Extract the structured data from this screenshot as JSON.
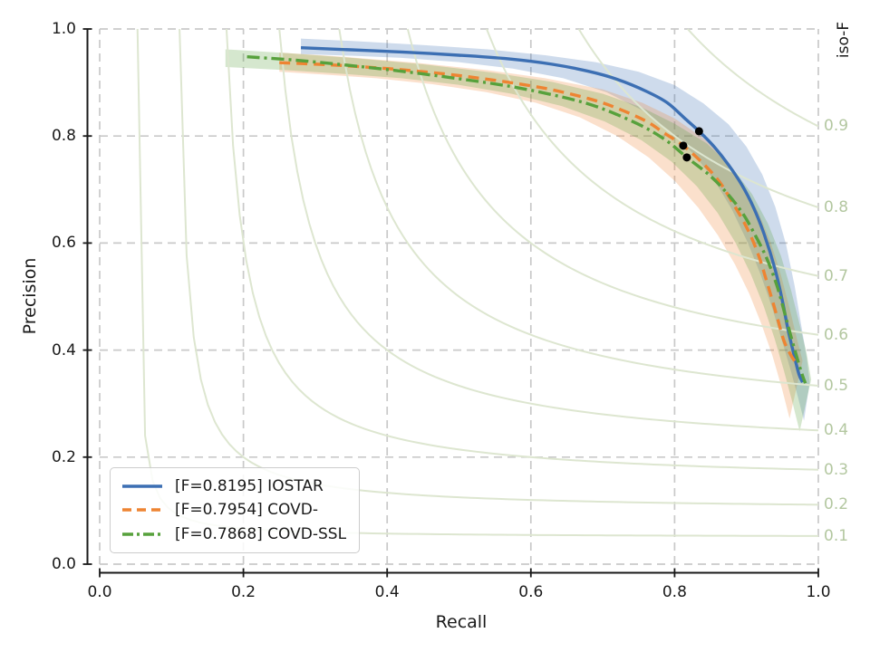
{
  "chart_data": {
    "type": "line",
    "title": "",
    "xlabel": "Recall",
    "ylabel": "Precision",
    "xlim": [
      0.0,
      1.0
    ],
    "ylim": [
      0.0,
      1.0
    ],
    "x_tick_values": [
      0.0,
      0.2,
      0.4,
      0.6,
      0.8,
      1.0
    ],
    "x_tick_labels": [
      "0.0",
      "0.2",
      "0.4",
      "0.6",
      "0.8",
      "1.0"
    ],
    "y_tick_values": [
      0.0,
      0.2,
      0.4,
      0.6,
      0.8,
      1.0
    ],
    "y_tick_labels": [
      "0.0",
      "0.2",
      "0.4",
      "0.6",
      "0.8",
      "1.0"
    ],
    "grid": "dashed",
    "legend_position": "lower-left",
    "iso_f": {
      "title": "iso-F",
      "values": [
        0.1,
        0.2,
        0.3,
        0.4,
        0.5,
        0.6,
        0.7,
        0.8,
        0.9
      ],
      "labels": [
        "0.1",
        "0.2",
        "0.3",
        "0.4",
        "0.5",
        "0.6",
        "0.7",
        "0.8",
        "0.9"
      ],
      "text_color": "#b3c7a0",
      "line_color": "#dde6d0"
    },
    "series": [
      {
        "name": "IOSTAR",
        "legend_label": "[F=0.8195] IOSTAR",
        "f_score": 0.8195,
        "color": "#3c6fb3",
        "line_style": "solid",
        "operating_point": {
          "recall": 0.834,
          "precision": 0.809
        },
        "points": [
          [
            0.28,
            0.965
          ],
          [
            0.35,
            0.961
          ],
          [
            0.42,
            0.957
          ],
          [
            0.5,
            0.951
          ],
          [
            0.57,
            0.944
          ],
          [
            0.63,
            0.934
          ],
          [
            0.68,
            0.921
          ],
          [
            0.72,
            0.906
          ],
          [
            0.76,
            0.884
          ],
          [
            0.79,
            0.862
          ],
          [
            0.815,
            0.832
          ],
          [
            0.834,
            0.809
          ],
          [
            0.855,
            0.78
          ],
          [
            0.875,
            0.746
          ],
          [
            0.893,
            0.71
          ],
          [
            0.91,
            0.666
          ],
          [
            0.925,
            0.615
          ],
          [
            0.94,
            0.55
          ],
          [
            0.95,
            0.492
          ],
          [
            0.958,
            0.437
          ],
          [
            0.966,
            0.392
          ],
          [
            0.973,
            0.355
          ],
          [
            0.978,
            0.34
          ]
        ],
        "band": [
          [
            0.28,
            0.982
          ],
          [
            0.36,
            0.977
          ],
          [
            0.45,
            0.97
          ],
          [
            0.54,
            0.962
          ],
          [
            0.62,
            0.951
          ],
          [
            0.69,
            0.938
          ],
          [
            0.75,
            0.92
          ],
          [
            0.8,
            0.895
          ],
          [
            0.84,
            0.861
          ],
          [
            0.875,
            0.822
          ],
          [
            0.9,
            0.78
          ],
          [
            0.922,
            0.728
          ],
          [
            0.94,
            0.668
          ],
          [
            0.955,
            0.598
          ],
          [
            0.967,
            0.52
          ],
          [
            0.976,
            0.448
          ],
          [
            0.984,
            0.385
          ],
          [
            0.988,
            0.34
          ],
          [
            0.98,
            0.268
          ],
          [
            0.972,
            0.31
          ],
          [
            0.962,
            0.36
          ],
          [
            0.95,
            0.415
          ],
          [
            0.936,
            0.478
          ],
          [
            0.92,
            0.54
          ],
          [
            0.902,
            0.6
          ],
          [
            0.88,
            0.662
          ],
          [
            0.856,
            0.716
          ],
          [
            0.828,
            0.764
          ],
          [
            0.795,
            0.808
          ],
          [
            0.755,
            0.848
          ],
          [
            0.705,
            0.882
          ],
          [
            0.645,
            0.908
          ],
          [
            0.575,
            0.926
          ],
          [
            0.5,
            0.938
          ],
          [
            0.42,
            0.946
          ],
          [
            0.35,
            0.95
          ],
          [
            0.28,
            0.953
          ]
        ]
      },
      {
        "name": "COVD-",
        "legend_label": "[F=0.7954] COVD-",
        "f_score": 0.7954,
        "color": "#ee8432",
        "line_style": "dashed",
        "operating_point": {
          "recall": 0.812,
          "precision": 0.782
        },
        "points": [
          [
            0.25,
            0.937
          ],
          [
            0.32,
            0.933
          ],
          [
            0.4,
            0.926
          ],
          [
            0.48,
            0.916
          ],
          [
            0.55,
            0.904
          ],
          [
            0.62,
            0.889
          ],
          [
            0.68,
            0.87
          ],
          [
            0.72,
            0.852
          ],
          [
            0.76,
            0.828
          ],
          [
            0.785,
            0.806
          ],
          [
            0.812,
            0.782
          ],
          [
            0.84,
            0.748
          ],
          [
            0.862,
            0.715
          ],
          [
            0.88,
            0.677
          ],
          [
            0.9,
            0.63
          ],
          [
            0.916,
            0.58
          ],
          [
            0.93,
            0.52
          ],
          [
            0.942,
            0.465
          ],
          [
            0.952,
            0.418
          ],
          [
            0.962,
            0.39
          ],
          [
            0.969,
            0.376
          ]
        ],
        "band": [
          [
            0.25,
            0.956
          ],
          [
            0.34,
            0.948
          ],
          [
            0.44,
            0.937
          ],
          [
            0.54,
            0.923
          ],
          [
            0.62,
            0.908
          ],
          [
            0.7,
            0.887
          ],
          [
            0.755,
            0.862
          ],
          [
            0.8,
            0.833
          ],
          [
            0.84,
            0.796
          ],
          [
            0.872,
            0.754
          ],
          [
            0.897,
            0.707
          ],
          [
            0.917,
            0.656
          ],
          [
            0.934,
            0.6
          ],
          [
            0.948,
            0.54
          ],
          [
            0.96,
            0.478
          ],
          [
            0.97,
            0.422
          ],
          [
            0.978,
            0.38
          ],
          [
            0.96,
            0.272
          ],
          [
            0.949,
            0.33
          ],
          [
            0.936,
            0.39
          ],
          [
            0.921,
            0.448
          ],
          [
            0.904,
            0.505
          ],
          [
            0.884,
            0.56
          ],
          [
            0.86,
            0.615
          ],
          [
            0.833,
            0.666
          ],
          [
            0.801,
            0.715
          ],
          [
            0.764,
            0.76
          ],
          [
            0.72,
            0.8
          ],
          [
            0.668,
            0.835
          ],
          [
            0.607,
            0.862
          ],
          [
            0.538,
            0.882
          ],
          [
            0.462,
            0.897
          ],
          [
            0.385,
            0.908
          ],
          [
            0.31,
            0.915
          ],
          [
            0.25,
            0.92
          ]
        ]
      },
      {
        "name": "COVD-SSL",
        "legend_label": "[F=0.7868] COVD-SSL",
        "f_score": 0.7868,
        "color": "#57a13c",
        "line_style": "dashdot",
        "operating_point": {
          "recall": 0.817,
          "precision": 0.76
        },
        "points": [
          [
            0.205,
            0.948
          ],
          [
            0.27,
            0.942
          ],
          [
            0.34,
            0.933
          ],
          [
            0.42,
            0.921
          ],
          [
            0.5,
            0.907
          ],
          [
            0.57,
            0.893
          ],
          [
            0.63,
            0.877
          ],
          [
            0.68,
            0.86
          ],
          [
            0.72,
            0.84
          ],
          [
            0.76,
            0.815
          ],
          [
            0.79,
            0.79
          ],
          [
            0.817,
            0.76
          ],
          [
            0.85,
            0.725
          ],
          [
            0.875,
            0.69
          ],
          [
            0.895,
            0.655
          ],
          [
            0.912,
            0.615
          ],
          [
            0.928,
            0.572
          ],
          [
            0.942,
            0.522
          ],
          [
            0.953,
            0.47
          ],
          [
            0.963,
            0.42
          ],
          [
            0.972,
            0.378
          ],
          [
            0.978,
            0.352
          ],
          [
            0.982,
            0.338
          ]
        ],
        "band": [
          [
            0.175,
            0.962
          ],
          [
            0.26,
            0.955
          ],
          [
            0.35,
            0.946
          ],
          [
            0.45,
            0.934
          ],
          [
            0.55,
            0.918
          ],
          [
            0.63,
            0.901
          ],
          [
            0.7,
            0.879
          ],
          [
            0.755,
            0.853
          ],
          [
            0.8,
            0.823
          ],
          [
            0.845,
            0.786
          ],
          [
            0.88,
            0.741
          ],
          [
            0.908,
            0.691
          ],
          [
            0.93,
            0.636
          ],
          [
            0.948,
            0.576
          ],
          [
            0.962,
            0.512
          ],
          [
            0.974,
            0.448
          ],
          [
            0.984,
            0.392
          ],
          [
            0.99,
            0.345
          ],
          [
            0.974,
            0.248
          ],
          [
            0.964,
            0.302
          ],
          [
            0.952,
            0.362
          ],
          [
            0.939,
            0.422
          ],
          [
            0.924,
            0.482
          ],
          [
            0.906,
            0.542
          ],
          [
            0.885,
            0.6
          ],
          [
            0.86,
            0.656
          ],
          [
            0.831,
            0.706
          ],
          [
            0.796,
            0.752
          ],
          [
            0.754,
            0.792
          ],
          [
            0.703,
            0.827
          ],
          [
            0.643,
            0.856
          ],
          [
            0.573,
            0.879
          ],
          [
            0.498,
            0.896
          ],
          [
            0.42,
            0.908
          ],
          [
            0.34,
            0.916
          ],
          [
            0.26,
            0.923
          ],
          [
            0.175,
            0.929
          ]
        ]
      }
    ],
    "marker_color": "#000000",
    "band_opacity": 0.25,
    "grid_color": "#c9c9c9",
    "spine_color": "#1a1a1a"
  }
}
